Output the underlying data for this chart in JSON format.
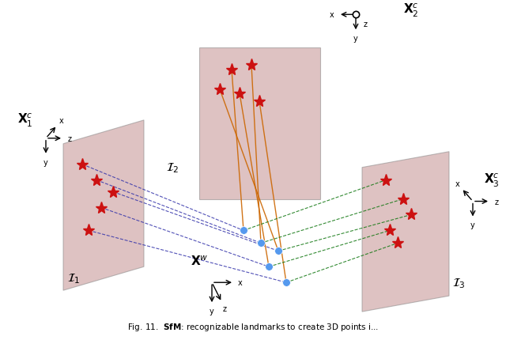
{
  "bg_color": "#ffffff",
  "plane_color": "#c49090",
  "plane_alpha": 0.55,
  "star_color": "#cc1111",
  "dot_color": "#5599ee",
  "line_blue_color": "#3333aa",
  "line_orange_color": "#cc6600",
  "line_green_color": "#117711",
  "camera1_label": "$\\mathbf{X}_1^c$",
  "camera2_label": "$\\mathbf{X}_2^c$",
  "camera3_label": "$\\mathbf{X}_3^c$",
  "world_label": "$\\mathbf{X}^w$",
  "image1_label": "$\\mathcal{I}_1$",
  "image2_label": "$\\mathcal{I}_2$",
  "image3_label": "$\\mathcal{I}_3$"
}
